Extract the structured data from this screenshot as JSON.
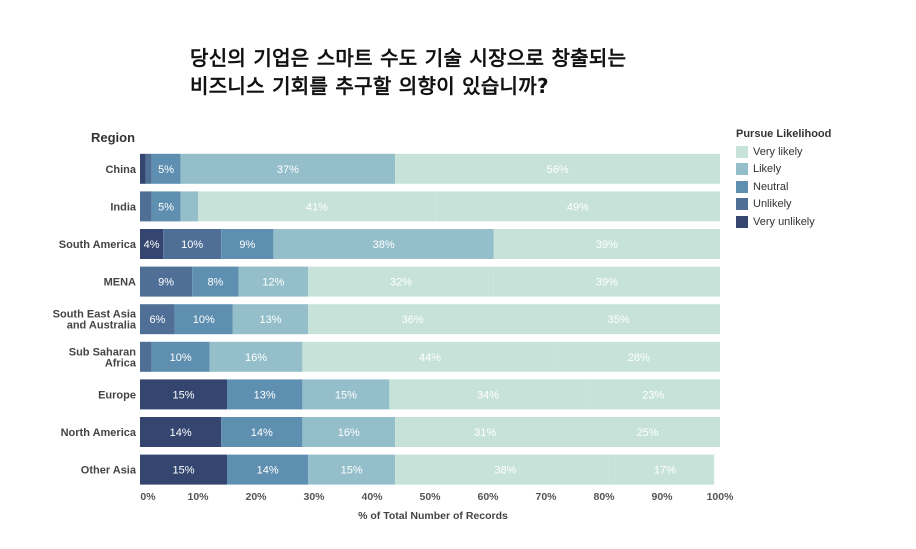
{
  "title": {
    "line1": "당신의 기업은 스마트 수도 기술 시장으로 창출되는",
    "line2": "비즈니스 기회를 추구할 의향이 있습니까?"
  },
  "chart_data": {
    "type": "bar",
    "orientation": "horizontal-stacked-100",
    "row_header": "Region",
    "xlabel": "% of Total Number of Records",
    "xlim": [
      0,
      100
    ],
    "xticks": [
      "0%",
      "10%",
      "20%",
      "30%",
      "40%",
      "50%",
      "60%",
      "70%",
      "80%",
      "90%",
      "100%"
    ],
    "legend_title": "Pursue Likelihood",
    "legend_position": "right",
    "categories": [
      "China",
      "India",
      "South America",
      "MENA",
      "South East Asia and Australia",
      "Sub Saharan Africa",
      "Europe",
      "North America",
      "Other Asia"
    ],
    "category_lines": [
      [
        "China"
      ],
      [
        "India"
      ],
      [
        "South America"
      ],
      [
        "MENA"
      ],
      [
        "South East Asia",
        "and Australia"
      ],
      [
        "Sub Saharan",
        "Africa"
      ],
      [
        "Europe"
      ],
      [
        "North America"
      ],
      [
        "Other Asia"
      ]
    ],
    "series": [
      {
        "name": "Very unlikely",
        "color": "#34466f",
        "values": [
          1,
          0,
          4,
          0,
          0,
          0,
          15,
          14,
          15
        ],
        "labels": [
          "",
          "",
          "4%",
          "",
          "",
          "",
          "15%",
          "14%",
          "15%"
        ]
      },
      {
        "name": "Unlikely",
        "color": "#4f6f96",
        "values": [
          1,
          2,
          10,
          9,
          6,
          2,
          0,
          0,
          0
        ],
        "labels": [
          "",
          "",
          "10%",
          "9%",
          "6%",
          "",
          "",
          "",
          ""
        ]
      },
      {
        "name": "Neutral",
        "color": "#5f8fb0",
        "values": [
          5,
          5,
          9,
          8,
          10,
          10,
          13,
          14,
          14
        ],
        "labels": [
          "5%",
          "5%",
          "9%",
          "8%",
          "10%",
          "10%",
          "13%",
          "14%",
          "14%"
        ]
      },
      {
        "name": "Likely",
        "color": "#94bfca",
        "values": [
          37,
          3,
          38,
          12,
          13,
          16,
          15,
          16,
          15
        ],
        "labels": [
          "37%",
          "",
          "38%",
          "12%",
          "13%",
          "16%",
          "15%",
          "16%",
          "15%"
        ]
      },
      {
        "name": "Very likely",
        "color": "#c7e3d9",
        "values": [
          56,
          41,
          39,
          32,
          36,
          44,
          34,
          31,
          38
        ],
        "labels": [
          "56%",
          "41%",
          "39%",
          "32%",
          "36%",
          "44%",
          "34%",
          "31%",
          "38%"
        ]
      },
      {
        "name": "",
        "color": "#c7e3d9",
        "values": [
          0,
          49,
          0,
          39,
          35,
          28,
          23,
          25,
          17
        ],
        "labels": [
          "",
          "49%",
          "",
          "39%",
          "35%",
          "28%",
          "23%",
          "25%",
          "17%"
        ]
      }
    ],
    "legend": [
      {
        "name": "Very likely",
        "color": "#c7e3d9"
      },
      {
        "name": "Likely",
        "color": "#94bfca"
      },
      {
        "name": "Neutral",
        "color": "#5f8fb0"
      },
      {
        "name": "Unlikely",
        "color": "#4f6f96"
      },
      {
        "name": "Very unlikely",
        "color": "#34466f"
      }
    ],
    "grid": false
  }
}
